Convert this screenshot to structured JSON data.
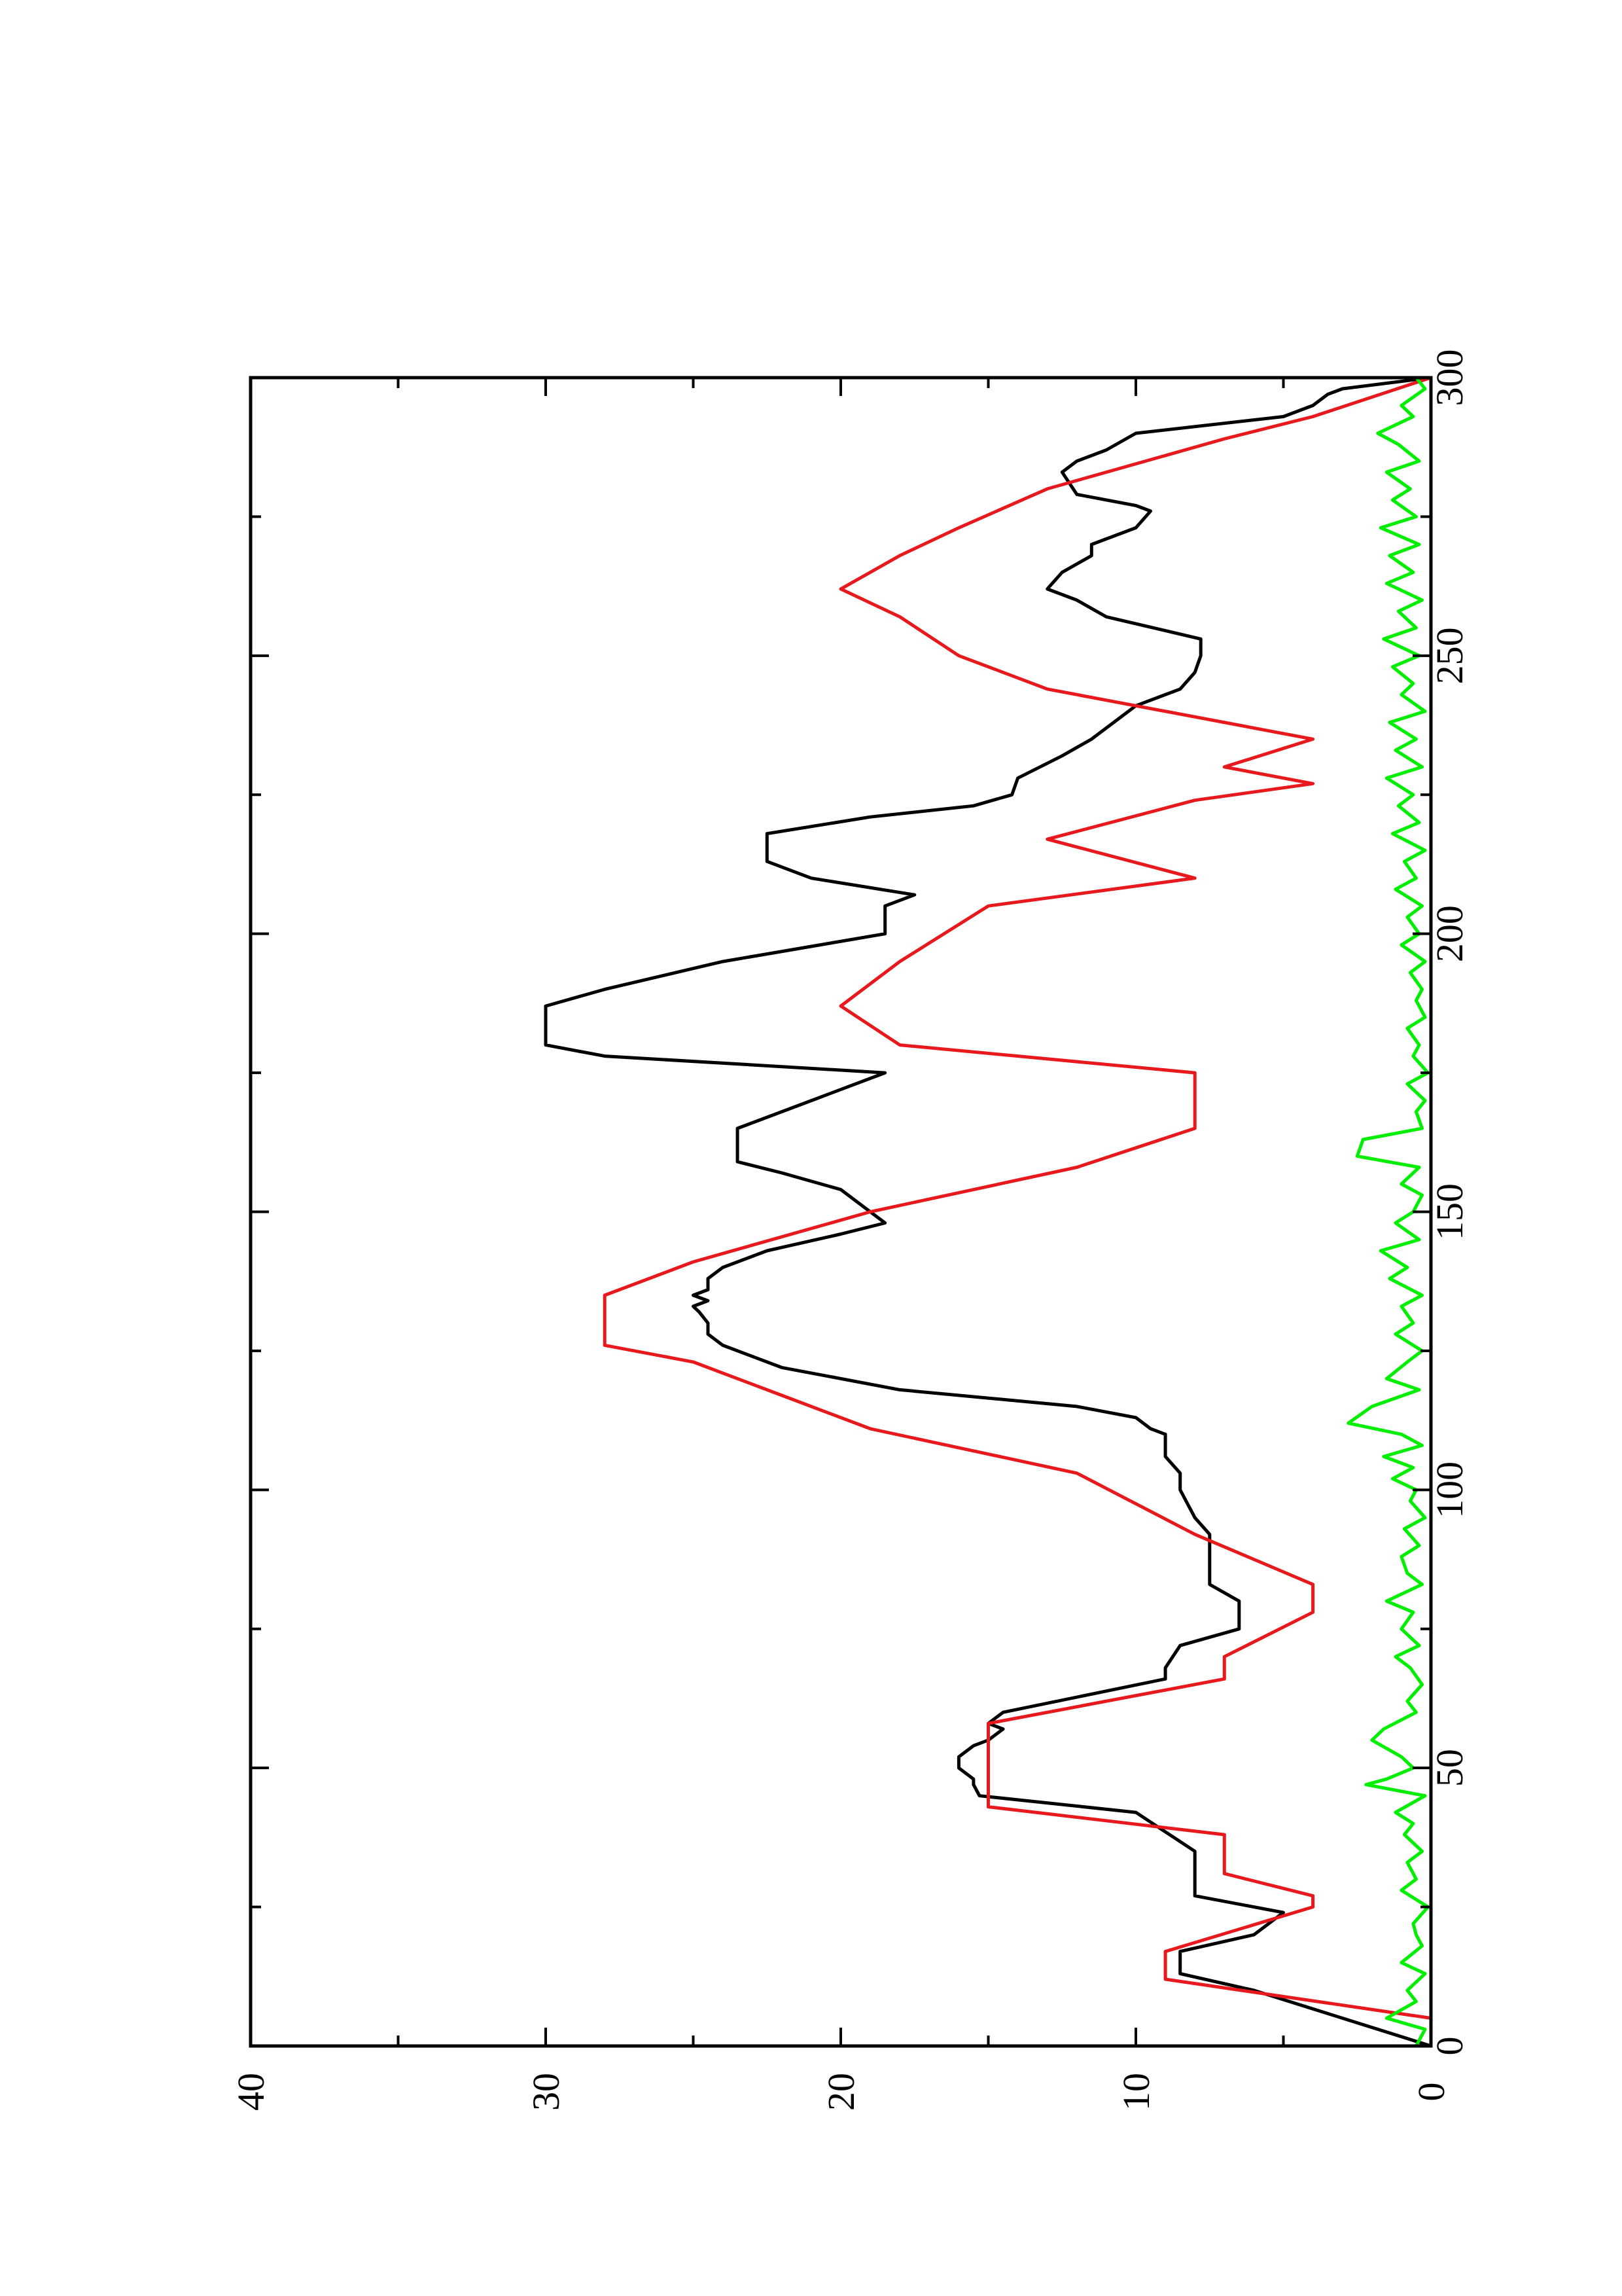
{
  "chart_data": {
    "type": "line",
    "orientation": "rotated-90-ccw",
    "title": "",
    "xlabel": "",
    "ylabel": "",
    "xlim": [
      0,
      300
    ],
    "ylim": [
      0,
      40
    ],
    "xticks": [
      0,
      50,
      100,
      150,
      200,
      250,
      300
    ],
    "xminor": [
      25,
      75,
      125,
      175,
      225,
      275
    ],
    "yticks": [
      0,
      10,
      20,
      30,
      40
    ],
    "yminor": [
      5,
      15,
      25,
      35
    ],
    "grid": false,
    "legend": "none",
    "series": [
      {
        "color": "#000000",
        "x": [
          0,
          5,
          10,
          13,
          17,
          20,
          24,
          27,
          30,
          35,
          42,
          45,
          47,
          48,
          50,
          52,
          54,
          55,
          57,
          58,
          60,
          66,
          68,
          72,
          75,
          78,
          80,
          83,
          86,
          89,
          92,
          95,
          100,
          103,
          106,
          108,
          110,
          111,
          113,
          115,
          118,
          122,
          126,
          128,
          130,
          132,
          133,
          134,
          135,
          136,
          138,
          140,
          143,
          146,
          148,
          150,
          154,
          157,
          159,
          163,
          165,
          170,
          175,
          178,
          180,
          185,
          187,
          190,
          195,
          200,
          203,
          205,
          207,
          210,
          213,
          218,
          221,
          223,
          225,
          228,
          232,
          235,
          241,
          244,
          247,
          250,
          253,
          257,
          260,
          262,
          265,
          268,
          270,
          273,
          276,
          277,
          279,
          283,
          285,
          287,
          290,
          293,
          295,
          297,
          298,
          300
        ],
        "y": [
          0,
          3,
          6,
          8.5,
          8.5,
          6,
          5,
          8,
          8,
          8,
          10,
          15.3,
          15.5,
          15.5,
          16,
          16,
          15.5,
          15,
          14.5,
          15,
          14.5,
          9,
          9,
          8.5,
          6.5,
          6.5,
          6.5,
          7.5,
          7.5,
          7.5,
          7.5,
          8,
          8.5,
          8.5,
          9,
          9,
          9,
          9.5,
          10,
          12,
          18,
          22,
          24,
          24.5,
          24.5,
          24.8,
          25,
          24.5,
          25,
          24.5,
          24.5,
          24,
          22.5,
          20,
          18.5,
          19,
          20,
          22,
          23.5,
          23.5,
          23.5,
          21,
          18.5,
          28,
          30,
          30,
          30,
          28,
          24,
          18.5,
          18.5,
          18.5,
          17.5,
          21,
          22.5,
          22.5,
          19,
          15.5,
          14.2,
          14,
          12.5,
          11.5,
          10,
          8.5,
          8,
          7.8,
          7.8,
          11,
          12,
          13,
          12.5,
          11.5,
          11.5,
          10,
          9.5,
          10,
          12,
          12.5,
          12,
          11,
          10,
          5,
          4,
          3.5,
          3,
          0
        ]
      },
      {
        "color": "#e8191c",
        "x": [
          0,
          5,
          12,
          17,
          25,
          27,
          31,
          38,
          43,
          52,
          58,
          66,
          70,
          78,
          83,
          92,
          103,
          111,
          117,
          123,
          126,
          135,
          141,
          150,
          158,
          165,
          175,
          180,
          187,
          195,
          205,
          210,
          217,
          224,
          227,
          230,
          235,
          244,
          250,
          257,
          262,
          268,
          273,
          280,
          289,
          293,
          300
        ],
        "y": [
          0,
          0,
          9,
          9,
          4,
          4,
          7,
          7,
          15,
          15,
          15,
          7,
          7,
          4,
          4,
          8,
          12,
          19,
          22,
          25,
          28,
          28,
          25,
          19,
          12,
          8,
          8,
          18,
          20,
          18,
          15,
          8,
          13,
          8,
          4,
          7,
          4,
          13,
          16,
          18,
          20,
          18,
          16,
          13,
          7,
          4,
          0
        ]
      },
      {
        "color": "#00ee00",
        "x": [
          0,
          3,
          5,
          8,
          10,
          13,
          15,
          18,
          20,
          22,
          25,
          28,
          30,
          33,
          35,
          38,
          40,
          42,
          45,
          47,
          48,
          50,
          52,
          55,
          57,
          60,
          62,
          65,
          68,
          70,
          72,
          75,
          78,
          80,
          83,
          85,
          88,
          90,
          93,
          95,
          98,
          100,
          102,
          104,
          106,
          108,
          110,
          112,
          115,
          118,
          120,
          123,
          125,
          128,
          130,
          133,
          135,
          138,
          140,
          143,
          145,
          148,
          150,
          153,
          155,
          158,
          160,
          163,
          165,
          168,
          170,
          173,
          175,
          178,
          180,
          183,
          185,
          188,
          190,
          193,
          195,
          198,
          200,
          203,
          205,
          208,
          210,
          213,
          215,
          218,
          220,
          223,
          225,
          228,
          230,
          233,
          235,
          238,
          240,
          243,
          245,
          248,
          250,
          253,
          255,
          258,
          260,
          263,
          265,
          268,
          270,
          273,
          275,
          278,
          280,
          283,
          285,
          288,
          290,
          293,
          295,
          298,
          300
        ],
        "y": [
          0.5,
          0.2,
          1.5,
          0.5,
          0.8,
          0.2,
          1.0,
          0.3,
          0.5,
          0.6,
          0.1,
          1.0,
          0.5,
          0.8,
          0.3,
          0.9,
          0.6,
          1.2,
          0.2,
          2.2,
          1.5,
          0.6,
          1.0,
          2.0,
          1.6,
          0.5,
          0.8,
          0.3,
          0.7,
          1.2,
          0.4,
          1.0,
          0.6,
          1.5,
          0.3,
          0.8,
          1.0,
          0.4,
          0.9,
          0.2,
          0.7,
          0.5,
          1.3,
          0.6,
          1.6,
          0.3,
          1.0,
          2.8,
          2.0,
          0.4,
          1.5,
          0.8,
          0.3,
          1.2,
          0.6,
          1.0,
          0.3,
          1.4,
          0.8,
          1.7,
          0.4,
          1.2,
          0.6,
          0.3,
          1.0,
          0.4,
          2.5,
          2.3,
          0.3,
          0.5,
          0.2,
          0.8,
          0.1,
          0.6,
          0.4,
          0.8,
          0.2,
          0.5,
          0.3,
          0.7,
          0.2,
          1.0,
          0.4,
          0.8,
          0.3,
          1.2,
          0.5,
          0.9,
          0.2,
          1.3,
          0.4,
          1.1,
          0.6,
          1.5,
          0.3,
          1.2,
          0.5,
          1.4,
          0.2,
          1.0,
          0.6,
          1.3,
          0.4,
          1.6,
          0.5,
          1.1,
          0.3,
          1.5,
          0.6,
          1.4,
          0.4,
          1.7,
          0.5,
          1.3,
          0.7,
          1.5,
          0.4,
          1.1,
          1.8,
          0.6,
          1.0,
          0.2,
          0.5
        ]
      }
    ]
  }
}
